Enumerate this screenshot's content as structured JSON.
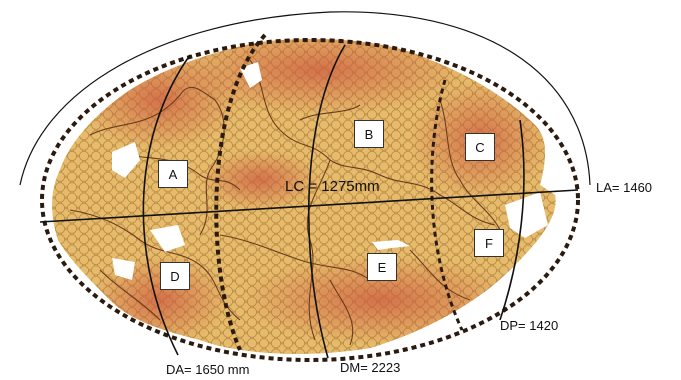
{
  "measurements": {
    "lc": "LC = 1275mm",
    "la": "LA= 1460",
    "da": "DA= 1650 mm",
    "dm": "DM= 2223",
    "dp": "DP= 1420"
  },
  "regions": [
    "A",
    "B",
    "C",
    "D",
    "E",
    "F"
  ],
  "colors": {
    "shell_base": "#dcae5e",
    "shell_dark": "#cc6d4c",
    "fracture": "#6b3d1e",
    "outline": "#2a1a10"
  }
}
